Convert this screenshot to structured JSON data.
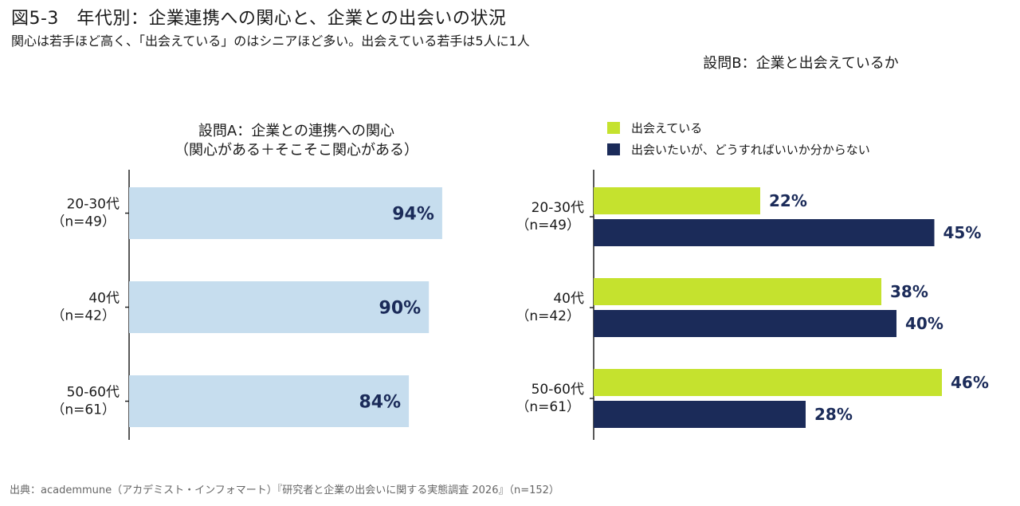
{
  "figure": {
    "title": "図5-3　年代別：企業連携への関心と、企業との出会いの状況",
    "subtitle": "関心は若手ほど高く、「出会えている」のはシニアほど多い。出会えている若手は5人に1人",
    "source": "出典：academmune（アカデミスト・インフォマート）『研究者と企業の出会いに関する実態調査 2026』（n=152）"
  },
  "colors": {
    "panelA_bar": "#c6ddee",
    "series_met": "#c5e22e",
    "series_want": "#1b2b59",
    "value_text": "#1b2b59",
    "axis": "#222222"
  },
  "chart_data": [
    {
      "type": "bar",
      "orientation": "horizontal",
      "title": "設問A：企業との連携への関心",
      "subtitle": "（関心がある＋そこそこ関心がある）",
      "categories": [
        "20-30代",
        "40代",
        "50-60代"
      ],
      "category_counts": [
        "（n=49）",
        "（n=42）",
        "（n=61）"
      ],
      "values": [
        94,
        90,
        84
      ],
      "value_labels": [
        "94%",
        "90%",
        "84%"
      ],
      "unit": "%",
      "xlim": [
        0,
        100
      ],
      "grid": false,
      "legend": "none"
    },
    {
      "type": "bar",
      "orientation": "horizontal",
      "title": "設問B：企業と出会えているか",
      "categories": [
        "20-30代",
        "40代",
        "50-60代"
      ],
      "category_counts": [
        "（n=49）",
        "（n=42）",
        "（n=61）"
      ],
      "series": [
        {
          "name": "出会えている",
          "values": [
            22,
            38,
            46
          ],
          "value_labels": [
            "22%",
            "38%",
            "46%"
          ]
        },
        {
          "name": "出会いたいが、どうすればいいか分からない",
          "values": [
            45,
            40,
            28
          ],
          "value_labels": [
            "45%",
            "40%",
            "28%"
          ]
        }
      ],
      "unit": "%",
      "xlim": [
        0,
        100
      ],
      "grid": false,
      "legend": "top-left"
    }
  ]
}
